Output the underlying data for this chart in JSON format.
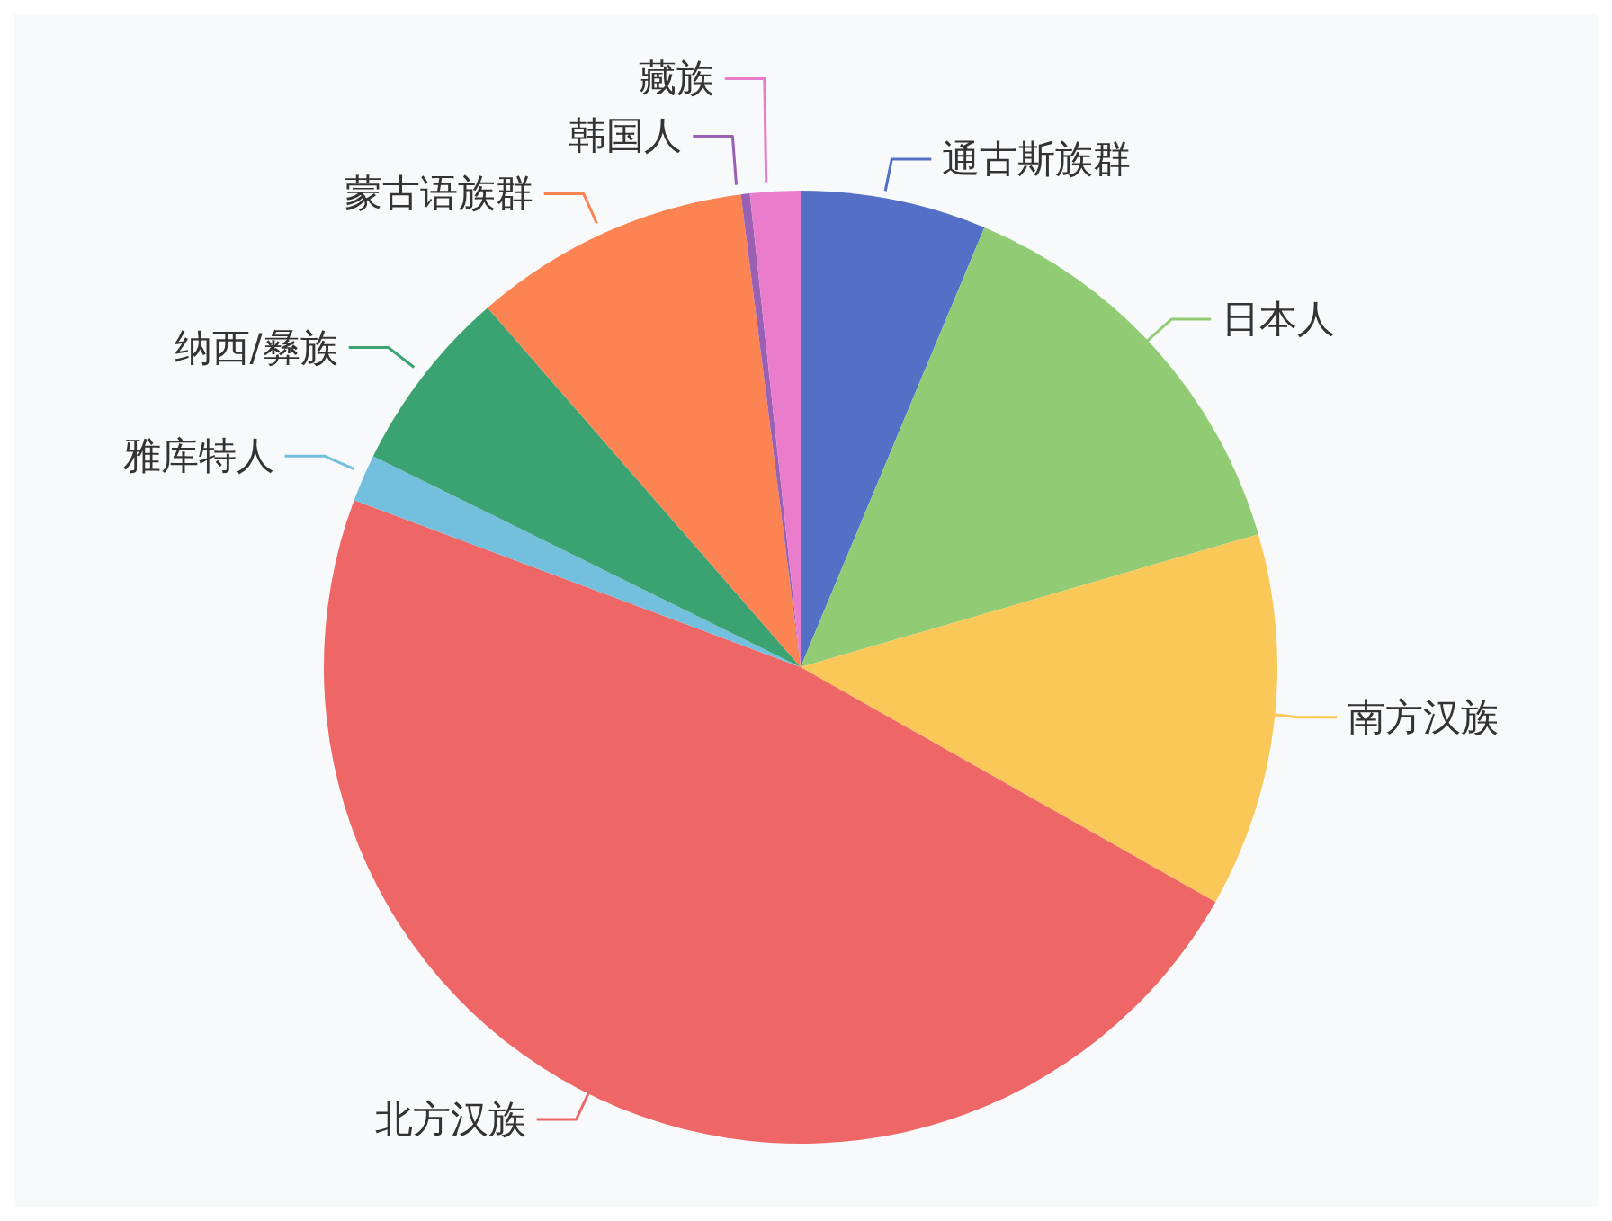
{
  "chart_data": {
    "type": "pie",
    "categories": [
      "通古斯族群",
      "日本人",
      "南方汉族",
      "北方汉族",
      "雅库特人",
      "纳西/彝族",
      "蒙古语族群",
      "韩国人",
      "藏族"
    ],
    "values": [
      6.3,
      14.2,
      12.7,
      47.5,
      1.6,
      6.3,
      9.4,
      0.3,
      1.7
    ],
    "colors": [
      "#5470c6",
      "#91cc75",
      "#fac858",
      "#ee6666",
      "#73c0de",
      "#3ba272",
      "#fc8452",
      "#9a60b4",
      "#ea7ccc"
    ]
  }
}
